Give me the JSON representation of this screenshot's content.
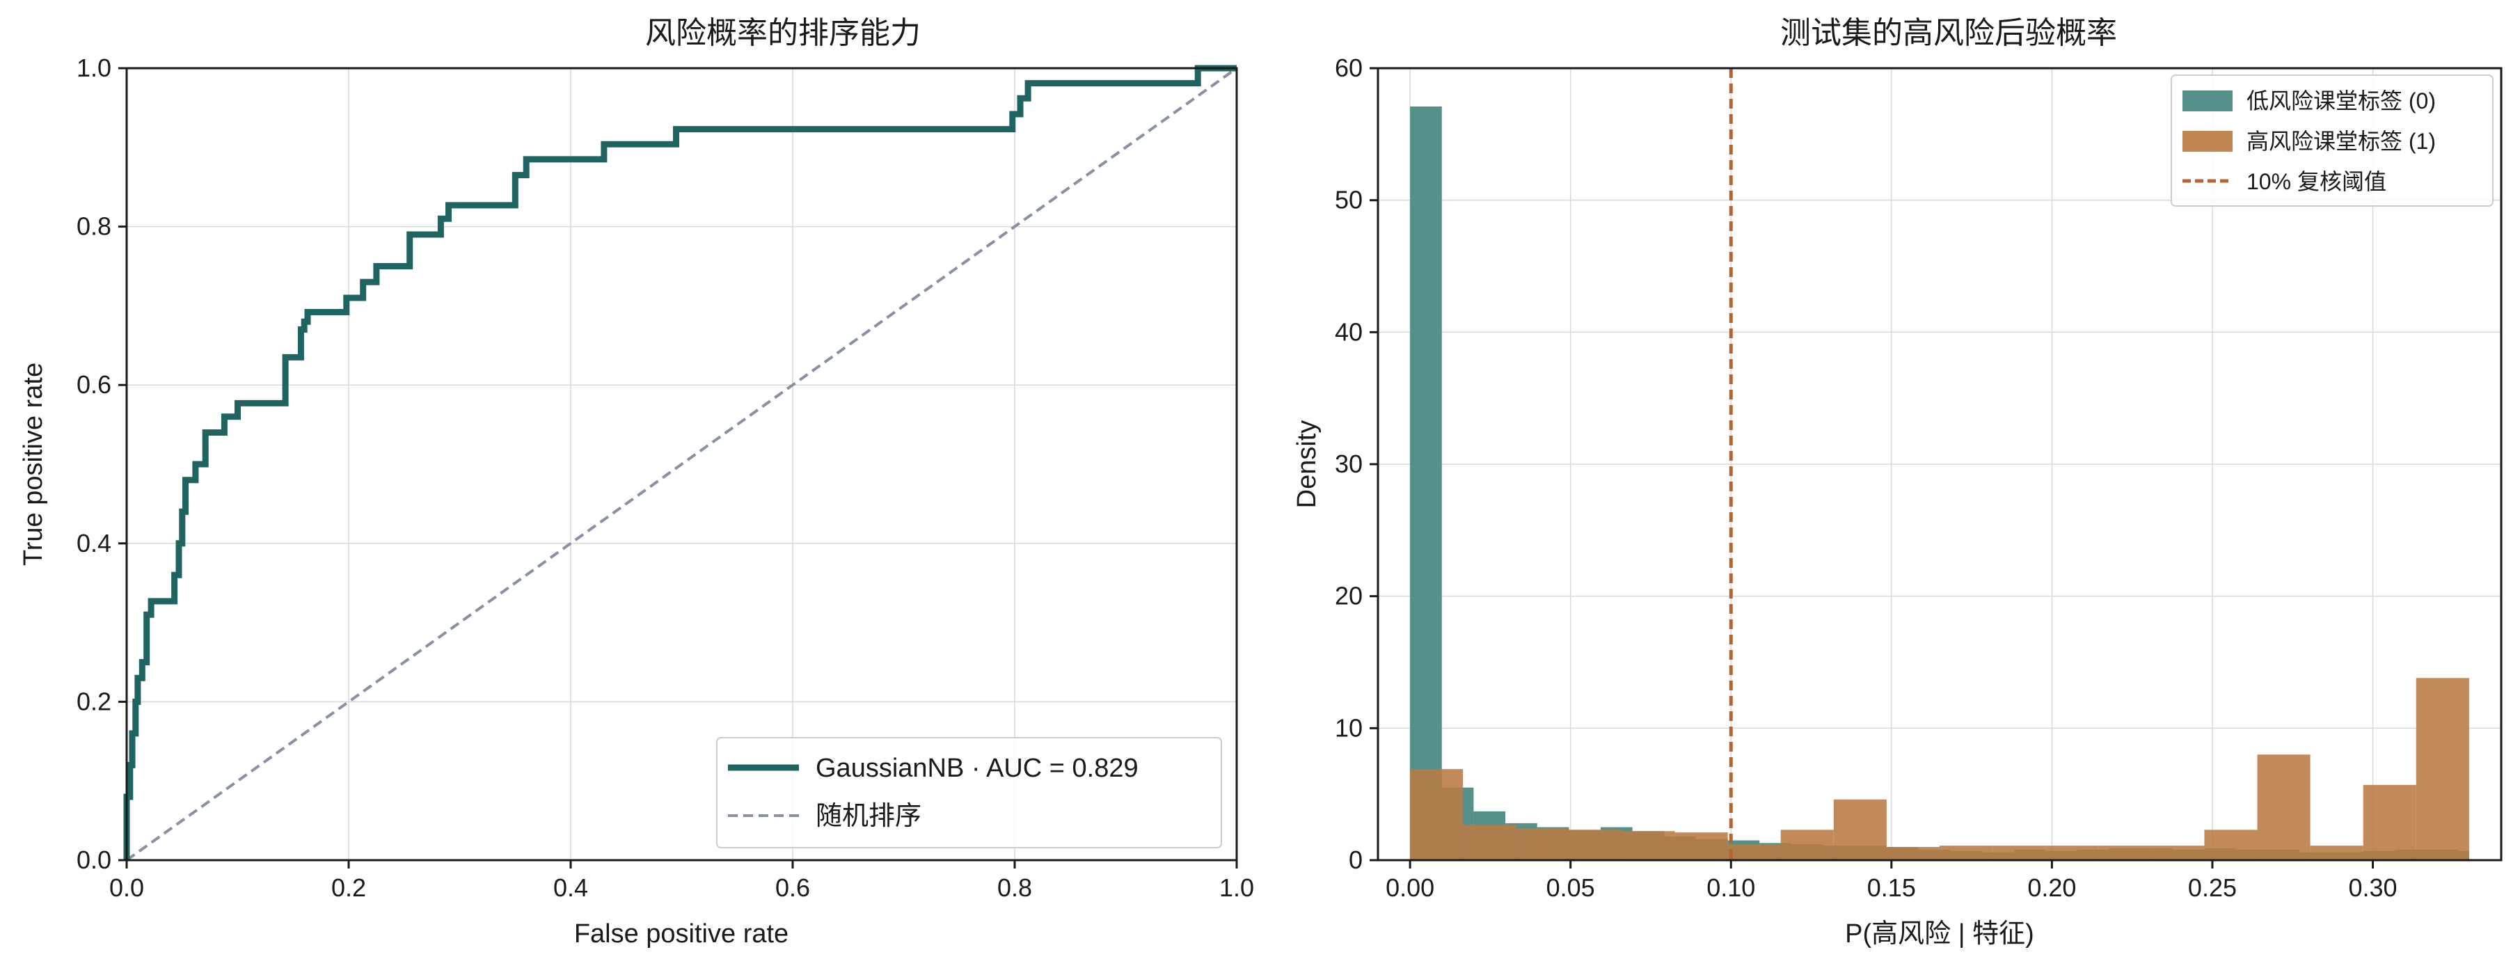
{
  "colors": {
    "roc": "#1f6460",
    "diagonal": "#8791a3",
    "low_risk": "#4d8a85",
    "high_risk": "#b97a43",
    "threshold": "#b8642c"
  },
  "chart_data": [
    {
      "type": "line",
      "title": "风险概率的排序能力",
      "xlabel": "False positive rate",
      "ylabel": "True positive rate",
      "xlim": [
        0,
        1
      ],
      "ylim": [
        0,
        1
      ],
      "xticks": [
        "0.0",
        "0.2",
        "0.4",
        "0.6",
        "0.8",
        "1.0"
      ],
      "yticks": [
        "0.0",
        "0.2",
        "0.4",
        "0.6",
        "0.8",
        "1.0"
      ],
      "grid": true,
      "legend_position": "bottom-right",
      "series": [
        {
          "name": "GaussianNB · AUC = 0.829",
          "x": [
            0,
            0,
            0.003,
            0.003,
            0.005,
            0.005,
            0.008,
            0.008,
            0.01,
            0.01,
            0.014,
            0.014,
            0.018,
            0.018,
            0.022,
            0.022,
            0.043,
            0.043,
            0.047,
            0.047,
            0.05,
            0.05,
            0.053,
            0.053,
            0.062,
            0.062,
            0.071,
            0.071,
            0.088,
            0.088,
            0.1,
            0.1,
            0.143,
            0.143,
            0.157,
            0.157,
            0.16,
            0.16,
            0.163,
            0.163,
            0.198,
            0.198,
            0.213,
            0.213,
            0.225,
            0.225,
            0.255,
            0.255,
            0.283,
            0.283,
            0.29,
            0.29,
            0.35,
            0.35,
            0.36,
            0.36,
            0.43,
            0.43,
            0.495,
            0.495,
            0.798,
            0.798,
            0.805,
            0.805,
            0.812,
            0.812,
            0.965,
            0.965,
            1.0
          ],
          "y": [
            0,
            0.08,
            0.08,
            0.12,
            0.12,
            0.16,
            0.16,
            0.2,
            0.2,
            0.23,
            0.23,
            0.25,
            0.25,
            0.31,
            0.31,
            0.327,
            0.327,
            0.36,
            0.36,
            0.4,
            0.4,
            0.44,
            0.44,
            0.48,
            0.48,
            0.5,
            0.5,
            0.54,
            0.54,
            0.56,
            0.56,
            0.577,
            0.577,
            0.635,
            0.635,
            0.67,
            0.67,
            0.68,
            0.68,
            0.692,
            0.692,
            0.71,
            0.71,
            0.73,
            0.73,
            0.75,
            0.75,
            0.79,
            0.79,
            0.81,
            0.81,
            0.827,
            0.827,
            0.865,
            0.865,
            0.885,
            0.885,
            0.904,
            0.904,
            0.923,
            0.923,
            0.942,
            0.942,
            0.962,
            0.962,
            0.981,
            0.981,
            1.0,
            1.0
          ]
        },
        {
          "name": "随机排序",
          "x": [
            0,
            1
          ],
          "y": [
            0,
            1
          ]
        }
      ]
    },
    {
      "type": "bar",
      "title": "测试集的高风险后验概率",
      "xlabel": "P(高风险 | 特征)",
      "ylabel": "Density",
      "xlim": [
        -0.01,
        0.34
      ],
      "ylim": [
        0,
        60
      ],
      "xticks": [
        "0.00",
        "0.05",
        "0.10",
        "0.15",
        "0.20",
        "0.25",
        "0.30"
      ],
      "yticks": [
        "0",
        "10",
        "20",
        "30",
        "40",
        "50",
        "60"
      ],
      "grid": true,
      "legend_position": "top-right",
      "series": [
        {
          "name": "低风险课堂标签 (0)",
          "bin_edges": [
            0,
            0.0099,
            0.0198,
            0.0297,
            0.0396,
            0.0495,
            0.0594,
            0.0693,
            0.0792,
            0.0891,
            0.099,
            0.1089,
            0.1188,
            0.1287,
            0.1386,
            0.1485,
            0.1584,
            0.1683,
            0.1782,
            0.1881,
            0.198,
            0.2079,
            0.2178,
            0.2277,
            0.2376,
            0.2475,
            0.2574,
            0.2673,
            0.2772,
            0.2871,
            0.297,
            0.3069,
            0.3168,
            0.3267,
            0.33
          ],
          "values": [
            57.1,
            5.5,
            3.7,
            2.8,
            2.5,
            2.3,
            2.5,
            2.2,
            1.8,
            1.6,
            1.5,
            1.3,
            1.2,
            1.1,
            1.1,
            1.0,
            0.8,
            0.7,
            0.6,
            0.8,
            0.7,
            0.8,
            0.9,
            0.9,
            0.8,
            0.9,
            0.8,
            0.8,
            0.6,
            0.6,
            0.7,
            0.8,
            0.8,
            0.7
          ]
        },
        {
          "name": "高风险课堂标签 (1)",
          "bin_edges": [
            0,
            0.0165,
            0.033,
            0.0495,
            0.066,
            0.0825,
            0.099,
            0.1155,
            0.132,
            0.1485,
            0.165,
            0.1815,
            0.198,
            0.2145,
            0.231,
            0.2475,
            0.264,
            0.2805,
            0.297,
            0.3135,
            0.33
          ],
          "values": [
            6.9,
            2.7,
            2.4,
            2.3,
            2.2,
            2.1,
            1.2,
            2.3,
            4.6,
            1.0,
            1.1,
            1.1,
            1.1,
            1.1,
            1.1,
            2.3,
            8.0,
            1.1,
            5.7,
            13.8
          ]
        }
      ],
      "annotations": [
        {
          "type": "vline",
          "x": 0.1,
          "name": "10% 复核阈值"
        }
      ]
    }
  ]
}
